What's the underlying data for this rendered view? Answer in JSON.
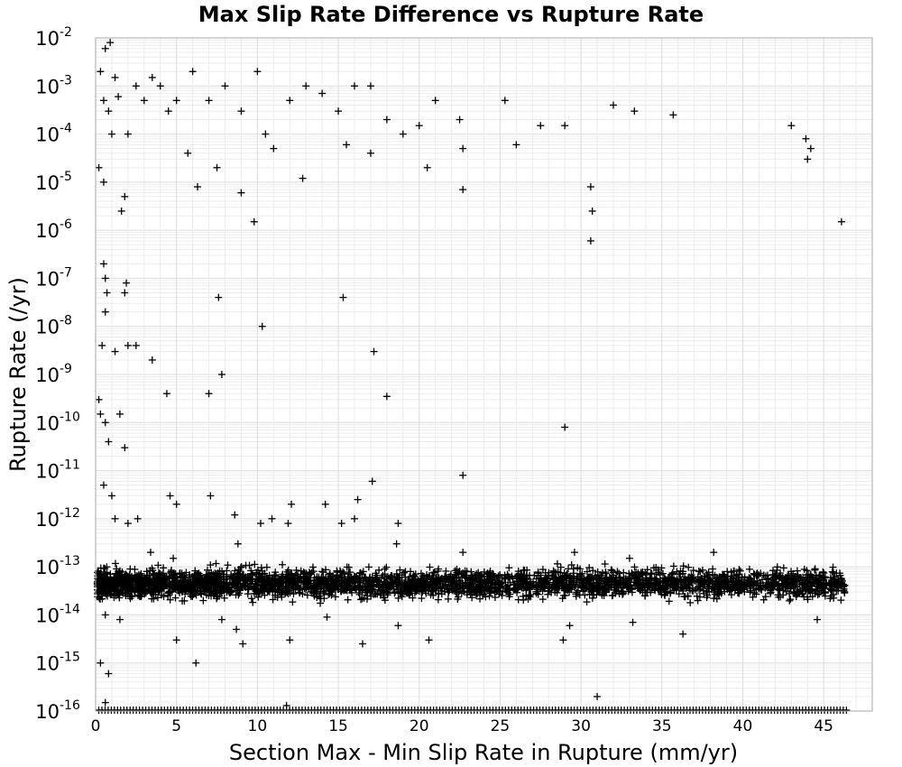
{
  "chart_data": {
    "type": "scatter",
    "title": "Max Slip Rate Difference vs Rupture Rate",
    "xlabel": "Section Max - Min Slip Rate in Rupture (mm/yr)",
    "ylabel": "Rupture Rate (/yr)",
    "xlim": [
      0,
      48
    ],
    "ylim": [
      1e-16,
      0.01
    ],
    "yscale": "log",
    "x_ticks": [
      "0",
      "5",
      "10",
      "15",
      "20",
      "25",
      "30",
      "35",
      "40",
      "45"
    ],
    "y_ticks": [
      {
        "base": "10",
        "exp": "-16"
      },
      {
        "base": "10",
        "exp": "-15"
      },
      {
        "base": "10",
        "exp": "-14"
      },
      {
        "base": "10",
        "exp": "-13"
      },
      {
        "base": "10",
        "exp": "-12"
      },
      {
        "base": "10",
        "exp": "-11"
      },
      {
        "base": "10",
        "exp": "-10"
      },
      {
        "base": "10",
        "exp": "-9"
      },
      {
        "base": "10",
        "exp": "-8"
      },
      {
        "base": "10",
        "exp": "-7"
      },
      {
        "base": "10",
        "exp": "-6"
      },
      {
        "base": "10",
        "exp": "-5"
      },
      {
        "base": "10",
        "exp": "-4"
      },
      {
        "base": "10",
        "exp": "-3"
      },
      {
        "base": "10",
        "exp": "-2"
      }
    ],
    "grid": true,
    "marker": "+",
    "marker_color": "#000000",
    "points": [
      [
        0.3,
        0.002
      ],
      [
        0.6,
        0.006
      ],
      [
        0.9,
        0.008
      ],
      [
        1.2,
        0.0015
      ],
      [
        0.5,
        0.0005
      ],
      [
        0.8,
        0.0003
      ],
      [
        1.0,
        0.0001
      ],
      [
        1.4,
        0.0006
      ],
      [
        2.0,
        0.0001
      ],
      [
        2.5,
        0.001
      ],
      [
        3.0,
        0.0005
      ],
      [
        3.5,
        0.0015
      ],
      [
        4.0,
        0.001
      ],
      [
        4.5,
        0.0003
      ],
      [
        5.0,
        0.0005
      ],
      [
        6.0,
        0.002
      ],
      [
        7.0,
        0.0005
      ],
      [
        8.0,
        0.001
      ],
      [
        9.0,
        0.0003
      ],
      [
        10.0,
        0.002
      ],
      [
        10.5,
        0.0001
      ],
      [
        11.0,
        5e-05
      ],
      [
        12.0,
        0.0005
      ],
      [
        13.0,
        0.001
      ],
      [
        14.0,
        0.0007
      ],
      [
        15.0,
        0.0003
      ],
      [
        15.5,
        6e-05
      ],
      [
        16.0,
        0.001
      ],
      [
        17.0,
        0.001
      ],
      [
        18.0,
        0.0002
      ],
      [
        19.0,
        0.0001
      ],
      [
        20.0,
        0.00015
      ],
      [
        20.5,
        2e-05
      ],
      [
        21.0,
        0.0005
      ],
      [
        22.5,
        0.0002
      ],
      [
        22.7,
        5e-05
      ],
      [
        22.7,
        7e-06
      ],
      [
        25.3,
        0.0005
      ],
      [
        26.0,
        6e-05
      ],
      [
        27.5,
        0.00015
      ],
      [
        29.0,
        0.00015
      ],
      [
        30.6,
        8e-06
      ],
      [
        30.7,
        2.5e-06
      ],
      [
        30.6,
        6e-07
      ],
      [
        32.0,
        0.0004
      ],
      [
        33.3,
        0.0003
      ],
      [
        35.7,
        0.00025
      ],
      [
        43.0,
        0.00015
      ],
      [
        43.9,
        8e-05
      ],
      [
        44.0,
        3e-05
      ],
      [
        44.2,
        5e-05
      ],
      [
        46.1,
        1.5e-06
      ],
      [
        0.2,
        2e-05
      ],
      [
        0.5,
        1e-05
      ],
      [
        1.6,
        2.5e-06
      ],
      [
        1.8,
        5e-06
      ],
      [
        5.7,
        4e-05
      ],
      [
        6.3,
        8e-06
      ],
      [
        7.5,
        2e-05
      ],
      [
        9.0,
        6e-06
      ],
      [
        9.8,
        1.5e-06
      ],
      [
        12.8,
        1.2e-05
      ],
      [
        17.0,
        4e-05
      ],
      [
        0.5,
        2e-07
      ],
      [
        0.6,
        1e-07
      ],
      [
        0.7,
        5e-08
      ],
      [
        1.8,
        5e-08
      ],
      [
        1.9,
        8e-08
      ],
      [
        0.6,
        2e-08
      ],
      [
        7.6,
        4e-08
      ],
      [
        10.3,
        1e-08
      ],
      [
        15.3,
        4e-08
      ],
      [
        0.4,
        4e-09
      ],
      [
        1.2,
        3e-09
      ],
      [
        2.0,
        4e-09
      ],
      [
        2.5,
        4e-09
      ],
      [
        3.5,
        2e-09
      ],
      [
        4.4,
        4e-10
      ],
      [
        7.0,
        4e-10
      ],
      [
        7.8,
        1e-09
      ],
      [
        17.2,
        3e-09
      ],
      [
        18.0,
        3.5e-10
      ],
      [
        29.0,
        8e-11
      ],
      [
        0.2,
        3e-10
      ],
      [
        0.3,
        1.5e-10
      ],
      [
        0.6,
        1e-10
      ],
      [
        1.5,
        1.5e-10
      ],
      [
        0.8,
        4e-11
      ],
      [
        1.8,
        3e-11
      ],
      [
        0.5,
        5e-12
      ],
      [
        1.0,
        3e-12
      ],
      [
        4.6,
        3e-12
      ],
      [
        5.0,
        2e-12
      ],
      [
        7.1,
        3e-12
      ],
      [
        8.6,
        1.2e-12
      ],
      [
        10.2,
        8e-13
      ],
      [
        10.9,
        1e-12
      ],
      [
        11.9,
        8e-13
      ],
      [
        12.1,
        2e-12
      ],
      [
        14.2,
        2e-12
      ],
      [
        15.2,
        8e-13
      ],
      [
        16.0,
        1e-12
      ],
      [
        16.2,
        2.5e-12
      ],
      [
        17.1,
        6e-12
      ],
      [
        18.7,
        8e-13
      ],
      [
        22.7,
        8e-12
      ],
      [
        1.2,
        1e-12
      ],
      [
        2.0,
        8e-13
      ],
      [
        2.6,
        1e-12
      ],
      [
        0.6,
        1e-14
      ],
      [
        1.5,
        8e-15
      ],
      [
        5.0,
        3e-15
      ],
      [
        6.2,
        1e-15
      ],
      [
        7.8,
        8e-15
      ],
      [
        8.7,
        5e-15
      ],
      [
        9.1,
        2.5e-15
      ],
      [
        12.0,
        3e-15
      ],
      [
        14.3,
        9e-15
      ],
      [
        16.5,
        2.5e-15
      ],
      [
        18.7,
        6e-15
      ],
      [
        20.6,
        3e-15
      ],
      [
        28.9,
        3e-15
      ],
      [
        29.3,
        6e-15
      ],
      [
        31.0,
        2e-16
      ],
      [
        33.2,
        7e-15
      ],
      [
        36.3,
        4e-15
      ],
      [
        44.6,
        8e-15
      ],
      [
        0.3,
        1e-15
      ],
      [
        0.8,
        6e-16
      ],
      [
        0.6,
        1.5e-16
      ],
      [
        11.8,
        1.3e-16
      ],
      [
        3.4,
        2e-13
      ],
      [
        4.8,
        1.5e-13
      ],
      [
        8.8,
        3e-13
      ],
      [
        18.6,
        3e-13
      ],
      [
        22.7,
        2e-13
      ],
      [
        29.6,
        2e-13
      ],
      [
        33.0,
        1.5e-13
      ],
      [
        38.2,
        2e-13
      ]
    ],
    "dense_band": {
      "x_range": [
        0.1,
        46.3
      ],
      "y_center": 4.5e-14,
      "y_spread_decades": 0.35,
      "point_count": 3400
    },
    "floor_row": {
      "x_range": [
        0.1,
        46.5
      ],
      "y": 1e-16,
      "point_count": 240
    }
  }
}
